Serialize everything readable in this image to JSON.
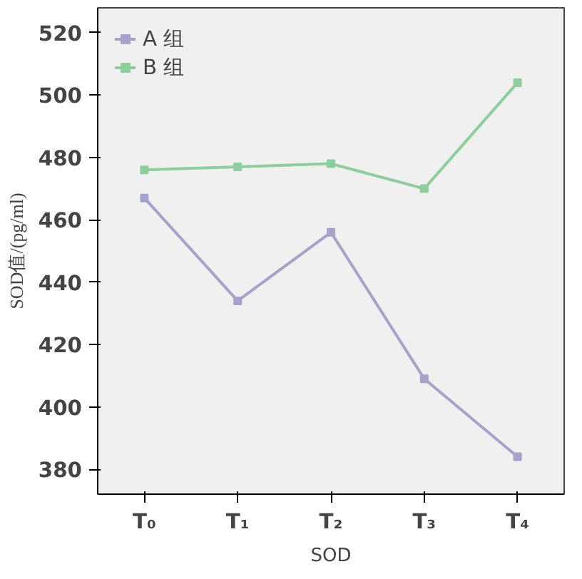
{
  "chart_data": {
    "type": "line",
    "xlabel": "SOD",
    "ylabel": "SOD值/(pg/ml)",
    "categories": [
      "T₀",
      "T₁",
      "T₂",
      "T₃",
      "T₄"
    ],
    "series": [
      {
        "name": "A 组",
        "color": "#a5a2cc",
        "values": [
          467,
          434,
          456,
          409,
          384
        ]
      },
      {
        "name": "B 组",
        "color": "#8ccf9c",
        "values": [
          476,
          477,
          478,
          470,
          504
        ]
      }
    ],
    "ylim": [
      372,
      528
    ],
    "yticks": [
      380,
      400,
      420,
      440,
      460,
      480,
      500,
      520
    ],
    "grid": false,
    "legend": "top left",
    "marker": "square",
    "line_style": "solid"
  }
}
